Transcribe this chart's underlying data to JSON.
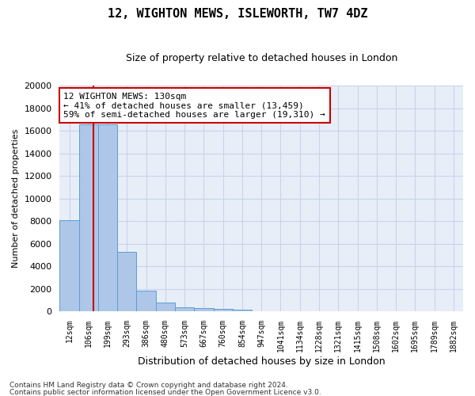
{
  "title1": "12, WIGHTON MEWS, ISLEWORTH, TW7 4DZ",
  "title2": "Size of property relative to detached houses in London",
  "xlabel": "Distribution of detached houses by size in London",
  "ylabel": "Number of detached properties",
  "categories": [
    "12sqm",
    "106sqm",
    "199sqm",
    "293sqm",
    "386sqm",
    "480sqm",
    "573sqm",
    "667sqm",
    "760sqm",
    "854sqm",
    "947sqm",
    "1041sqm",
    "1134sqm",
    "1228sqm",
    "1321sqm",
    "1415sqm",
    "1508sqm",
    "1602sqm",
    "1695sqm",
    "1789sqm",
    "1882sqm"
  ],
  "values": [
    8100,
    16600,
    16600,
    5300,
    1800,
    750,
    350,
    280,
    220,
    170,
    0,
    0,
    0,
    0,
    0,
    0,
    0,
    0,
    0,
    0,
    0
  ],
  "bar_color": "#aec6e8",
  "bar_edge_color": "#5a9fd4",
  "grid_color": "#c8d4e8",
  "bg_color": "#e8eef8",
  "vline_x": 1.25,
  "vline_color": "#cc0000",
  "annotation_text": "12 WIGHTON MEWS: 130sqm\n← 41% of detached houses are smaller (13,459)\n59% of semi-detached houses are larger (19,310) →",
  "annotation_box_color": "#ffffff",
  "annotation_box_edge": "#cc0000",
  "footer1": "Contains HM Land Registry data © Crown copyright and database right 2024.",
  "footer2": "Contains public sector information licensed under the Open Government Licence v3.0.",
  "ylim": [
    0,
    20000
  ],
  "yticks": [
    0,
    2000,
    4000,
    6000,
    8000,
    10000,
    12000,
    14000,
    16000,
    18000,
    20000
  ]
}
